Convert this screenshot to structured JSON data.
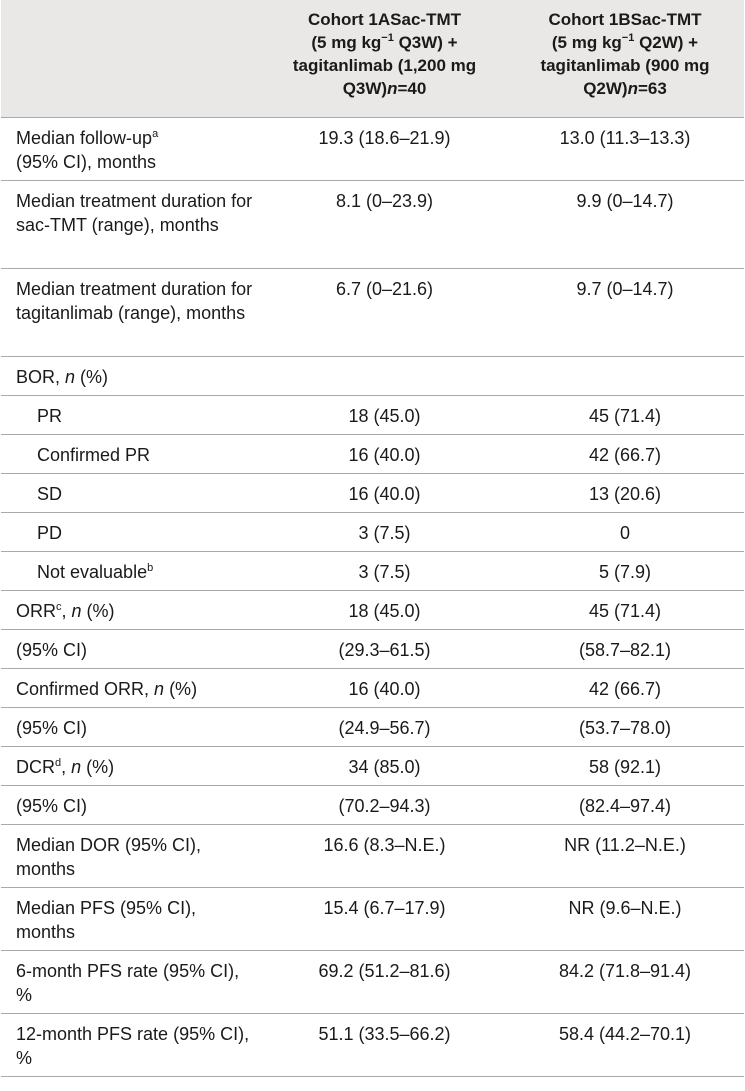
{
  "header": {
    "col1": "",
    "col2_line1": "Cohort 1ASac-TMT",
    "col2_line2": "(5 mg kg",
    "col2_sup": "−1",
    "col2_line2b": " Q3W) +",
    "col2_line3": "tagitanlimab (1,200 mg",
    "col2_line4a": "Q3W)",
    "col2_n": "n",
    "col2_line4b": "=40",
    "col3_line1": "Cohort 1BSac-TMT",
    "col3_line2": "(5 mg kg",
    "col3_sup": "−1",
    "col3_line2b": " Q2W) +",
    "col3_line3": "tagitanlimab (900 mg",
    "col3_line4a": "Q2W)",
    "col3_n": "n",
    "col3_line4b": "=63"
  },
  "rows": [
    {
      "label": "Median follow-up",
      "sup": "a",
      "label2": "(95% CI), months",
      "a": "19.3 (18.6–21.9)",
      "b": "13.0 (11.3–13.3)"
    },
    {
      "label": "Median treatment duration for sac-TMT (range), months",
      "a": "8.1 (0–23.9)",
      "b": "9.9 (0–14.7)"
    },
    {
      "label": "Median treatment duration for tagitanlimab (range), months",
      "a": "6.7 (0–21.6)",
      "b": "9.7 (0–14.7)"
    },
    {
      "label_pre": "BOR, ",
      "label_it": "n",
      "label_post": " (%)",
      "a": "",
      "b": ""
    },
    {
      "label": "PR",
      "indent": true,
      "a": "18 (45.0)",
      "b": "45 (71.4)"
    },
    {
      "label": "Confirmed PR",
      "indent": true,
      "a": "16 (40.0)",
      "b": "42 (66.7)"
    },
    {
      "label": "SD",
      "indent": true,
      "a": "16 (40.0)",
      "b": "13 (20.6)"
    },
    {
      "label": "PD",
      "indent": true,
      "a": "3 (7.5)",
      "b": "0"
    },
    {
      "label": "Not evaluable",
      "sup": "b",
      "indent": true,
      "a": "3 (7.5)",
      "b": "5 (7.9)"
    },
    {
      "label_pre": "ORR",
      "sup": "c",
      "label_mid": ", ",
      "label_it": "n",
      "label_post": " (%)",
      "a": "18 (45.0)",
      "b": "45 (71.4)"
    },
    {
      "label": "(95% CI)",
      "a": "(29.3–61.5)",
      "b": "(58.7–82.1)"
    },
    {
      "label_pre": "Confirmed ORR, ",
      "label_it": "n",
      "label_post": " (%)",
      "a": "16 (40.0)",
      "b": "42 (66.7)"
    },
    {
      "label": "(95% CI)",
      "a": "(24.9–56.7)",
      "b": "(53.7–78.0)"
    },
    {
      "label_pre": "DCR",
      "sup": "d",
      "label_mid": ", ",
      "label_it": "n",
      "label_post": " (%)",
      "a": "34 (85.0)",
      "b": "58 (92.1)"
    },
    {
      "label": "(95% CI)",
      "a": "(70.2–94.3)",
      "b": "(82.4–97.4)"
    },
    {
      "label": "Median DOR (95% CI), months",
      "a": "16.6 (8.3–N.E.)",
      "b": "NR (11.2–N.E.)"
    },
    {
      "label": "Median PFS (95% CI), months",
      "a": "15.4 (6.7–17.9)",
      "b": "NR (9.6–N.E.)"
    },
    {
      "label": "6-month PFS rate (95% CI), %",
      "a": "69.2 (51.2–81.6)",
      "b": "84.2 (71.8–91.4)"
    },
    {
      "label": "12-month PFS rate (95% CI), %",
      "a": "51.1 (33.5–66.2)",
      "b": "58.4 (44.2–70.1)"
    }
  ]
}
